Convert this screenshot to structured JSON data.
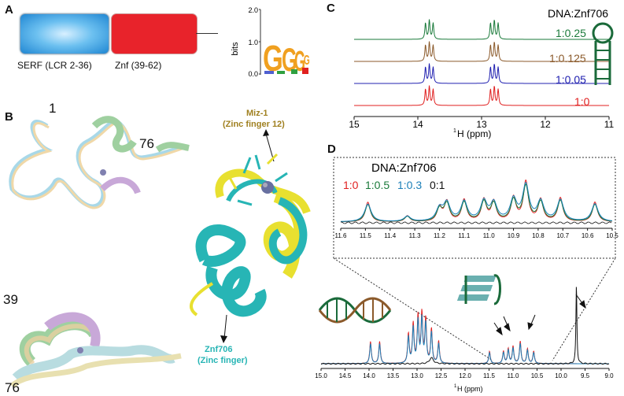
{
  "panelA": {
    "label": "A",
    "domain1": "SERF (LCR 2-36)",
    "domain2": "Znf (39-62)",
    "logo": {
      "axis_label": "bits",
      "ticks": [
        "2.0",
        "1.0",
        "0.0"
      ],
      "letters": [
        "G",
        "G",
        "G",
        "G"
      ]
    }
  },
  "panelB": {
    "label": "B",
    "label_1": "1",
    "label_76a": "76",
    "label_39": "39",
    "label_76b": "76",
    "miz1": "Miz-1",
    "miz1_sub": "(Zinc finger 12)",
    "znf706": "Znf706",
    "znf706_sub": "(Zinc finger)"
  },
  "panelC": {
    "label": "C",
    "title": "DNA:Znf706",
    "xlabel_prefix": "1",
    "xlabel": "H (ppm)",
    "ticks": [
      "15",
      "14",
      "13",
      "12",
      "11"
    ],
    "ratios": [
      {
        "label": "1:0.25",
        "color": "#1a7a3a"
      },
      {
        "label": "1:0.125",
        "color": "#8b5a2b"
      },
      {
        "label": "1:0.05",
        "color": "#2020b0"
      },
      {
        "label": "1:0",
        "color": "#e02020"
      }
    ]
  },
  "panelD": {
    "label": "D",
    "inset_title": "DNA:Znf706",
    "legend": [
      {
        "label": "1:0",
        "color": "#e02020"
      },
      {
        "label": "1:0.5",
        "color": "#1a7a3a"
      },
      {
        "label": "1:0.3",
        "color": "#1b7fb8"
      },
      {
        "label": "0:1",
        "color": "#111111"
      }
    ],
    "inset_ticks": [
      "11.6",
      "11.5",
      "11.4",
      "11.3",
      "11.2",
      "11.1",
      "11.0",
      "10.9",
      "10.8",
      "10.7",
      "10.6",
      "10.5"
    ],
    "main_ticks": [
      "15.0",
      "14.5",
      "14.0",
      "13.5",
      "13.0",
      "12.5",
      "12.0",
      "11.5",
      "11.0",
      "10.5",
      "10.0",
      "9.5",
      "9.0"
    ],
    "xlabel_prefix": "1",
    "xlabel": "H (ppm)"
  },
  "colors": {
    "serf_blue": "#2a8fd6",
    "znf_red": "#e8232b",
    "cyan": "#27b5b5",
    "yellow": "#e8e030",
    "gold": "#a08020"
  }
}
